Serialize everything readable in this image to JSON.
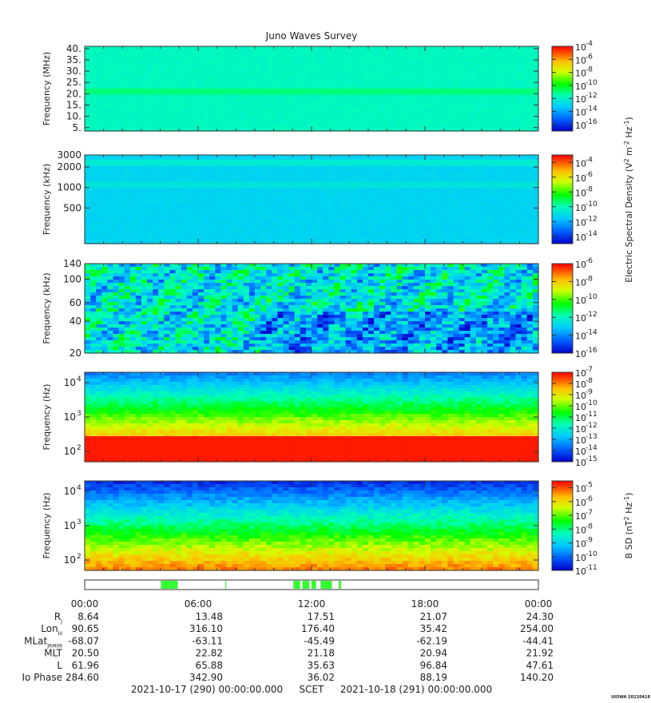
{
  "title": "Juno Waves Survey",
  "chart_data": [
    {
      "type": "heatmap",
      "ylabel": "Frequency (MHz)",
      "ytick_labels": [
        "40.",
        "35.",
        "30.",
        "25.",
        "20.",
        "15.",
        "10.",
        "5."
      ],
      "ylim": [
        3.5,
        41
      ],
      "colorbar_ticks": [
        -4,
        -6,
        -8,
        -10,
        -12,
        -14,
        -16
      ],
      "colorbar_range": [
        -17,
        -4
      ],
      "background_level": -11.8,
      "bands": [
        {
          "y": 21,
          "level": -11.0
        }
      ]
    },
    {
      "type": "heatmap",
      "ylabel": "Frequency (kHz)",
      "ytick_labels": [
        "3000",
        "2000",
        "1000",
        "500"
      ],
      "ylim": [
        150,
        3000
      ],
      "colorbar_ticks": [
        -4,
        -6,
        -8,
        -10,
        -12,
        -14
      ],
      "colorbar_range": [
        -15,
        -3
      ],
      "background_level": -11.3,
      "bands": [
        {
          "y": 2300,
          "level": -10.6
        },
        {
          "y": 1100,
          "level": -10.8
        }
      ]
    },
    {
      "type": "heatmap",
      "ylabel": "Frequency (kHz)",
      "ytick_labels": [
        "140",
        "100",
        "60",
        "40",
        "20"
      ],
      "ylim": [
        20,
        140
      ],
      "colorbar_ticks": [
        -6,
        -8,
        -10,
        -12,
        -14,
        -16
      ],
      "colorbar_range": [
        -16,
        -6
      ],
      "background_level": -12.5
    },
    {
      "type": "heatmap",
      "ylabel": "Frequency (Hz)",
      "ytick_labels": [
        "10",
        "10",
        "10"
      ],
      "ytick_exponents": [
        "4",
        "3",
        "2"
      ],
      "ylim": [
        50,
        20000
      ],
      "colorbar_ticks": [
        -7,
        -8,
        -9,
        -10,
        -11,
        -12,
        -13,
        -14,
        -15
      ],
      "colorbar_range": [
        -15,
        -7
      ],
      "background_level": -11.0
    },
    {
      "type": "heatmap",
      "ylabel": "Frequency (Hz)",
      "ytick_labels": [
        "10",
        "10",
        "10"
      ],
      "ytick_exponents": [
        "4",
        "3",
        "2"
      ],
      "ylim": [
        50,
        20000
      ],
      "colorbar_ticks": [
        -5,
        -6,
        -7,
        -8,
        -9,
        -10,
        -11
      ],
      "colorbar_range": [
        -11,
        -4.5
      ],
      "background_level": -8.0
    }
  ],
  "colorbar_label_1": "Electric Spectral Density (V",
  "colorbar_label_1_sup": "2",
  "colorbar_label_1_mid": " m",
  "colorbar_label_1_sup2": "-2",
  "colorbar_label_1_mid2": " Hz",
  "colorbar_label_1_sup3": "-1",
  "colorbar_label_1_end": ")",
  "colorbar_label_2": "B SD (nT",
  "colorbar_label_2_sup": "2",
  "colorbar_label_2_mid": " Hz",
  "colorbar_label_2_sup2": "-1",
  "colorbar_label_2_end": ")",
  "colorbar_base": "10",
  "time_labels": [
    "00:00",
    "06:00",
    "12:00",
    "18:00",
    "00:00"
  ],
  "ephemeris": [
    {
      "label": "R",
      "sub": "J",
      "values": [
        "8.64",
        "13.48",
        "17.51",
        "21.07",
        "24.30"
      ]
    },
    {
      "label": "Lon",
      "sub": "III",
      "values": [
        "90.65",
        "316.10",
        "176.40",
        "35.42",
        "254.00"
      ]
    },
    {
      "label": "MLat",
      "sub": "JRM09",
      "values": [
        "-68.07",
        "-63.11",
        "-45.49",
        "-62.19",
        "-44.41"
      ]
    },
    {
      "label": "MLT",
      "sub": "",
      "values": [
        "20.50",
        "22.82",
        "21.18",
        "20.94",
        "21.92"
      ]
    },
    {
      "label": "L",
      "sub": "",
      "values": [
        "61.96",
        "65.88",
        "35.63",
        "96.84",
        "47.61"
      ]
    },
    {
      "label": "Io Phase",
      "sub": "",
      "values": [
        "284.60",
        "342.90",
        "36.02",
        "88.19",
        "140.20"
      ]
    }
  ],
  "footer": {
    "start": "2021-10-17 (290) 00:00:00.000",
    "scet": "SCET",
    "end": "2021-10-18 (291) 00:00:00.000"
  },
  "stamp": "UIOWA 20220418",
  "mode_bar_segments": [
    [
      0.168,
      0.205
    ],
    [
      0.31,
      0.312
    ],
    [
      0.46,
      0.475
    ],
    [
      0.48,
      0.495
    ],
    [
      0.5,
      0.51
    ],
    [
      0.52,
      0.545
    ],
    [
      0.56,
      0.565
    ]
  ],
  "colors": {
    "mode_bar": "#33ff33",
    "axis": "#333333"
  }
}
